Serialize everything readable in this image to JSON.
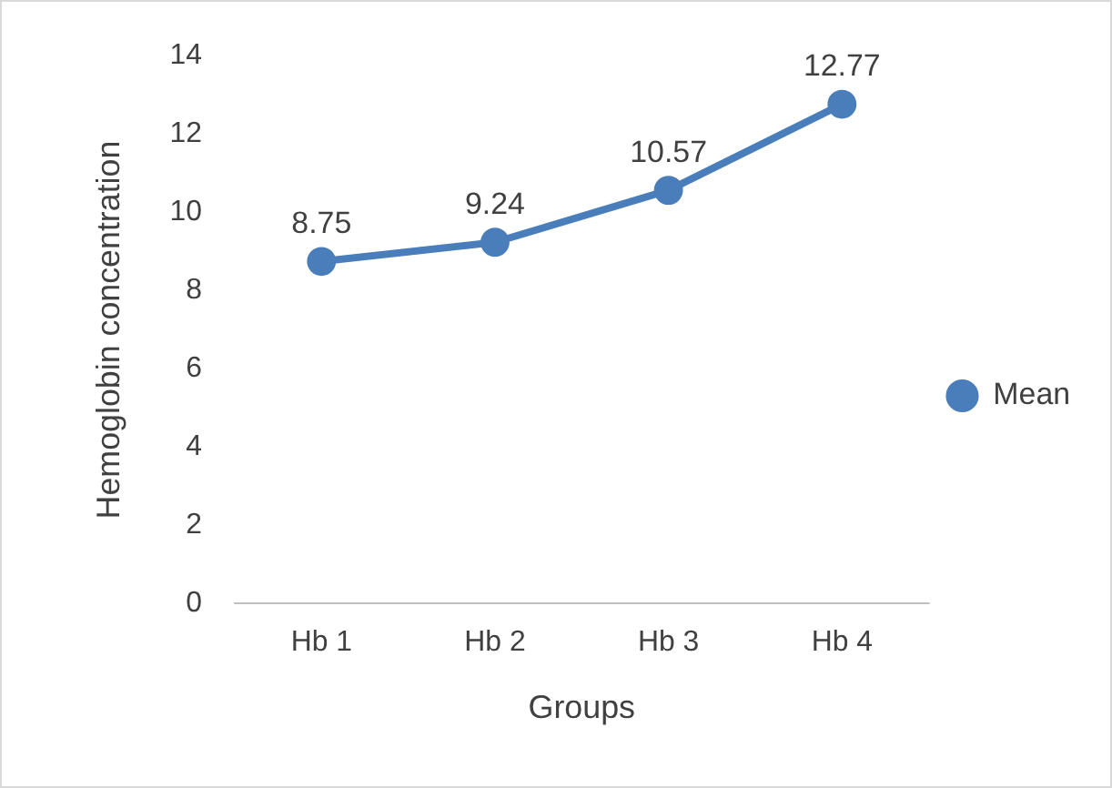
{
  "chart_data": {
    "type": "line",
    "xlabel": "Groups",
    "ylabel": "Hemoglobin concentration",
    "categories": [
      "Hb 1",
      "Hb 2",
      "Hb 3",
      "Hb 4"
    ],
    "series": [
      {
        "name": "Mean",
        "color": "#4a7ebb",
        "values": [
          8.75,
          9.24,
          10.57,
          12.77
        ]
      }
    ],
    "ylim": [
      0,
      14
    ],
    "yticks": [
      0,
      2,
      4,
      6,
      8,
      10,
      12,
      14
    ],
    "grid": false,
    "legend": "right",
    "marker": "circle",
    "line_style": "solid",
    "data_labels": true
  }
}
